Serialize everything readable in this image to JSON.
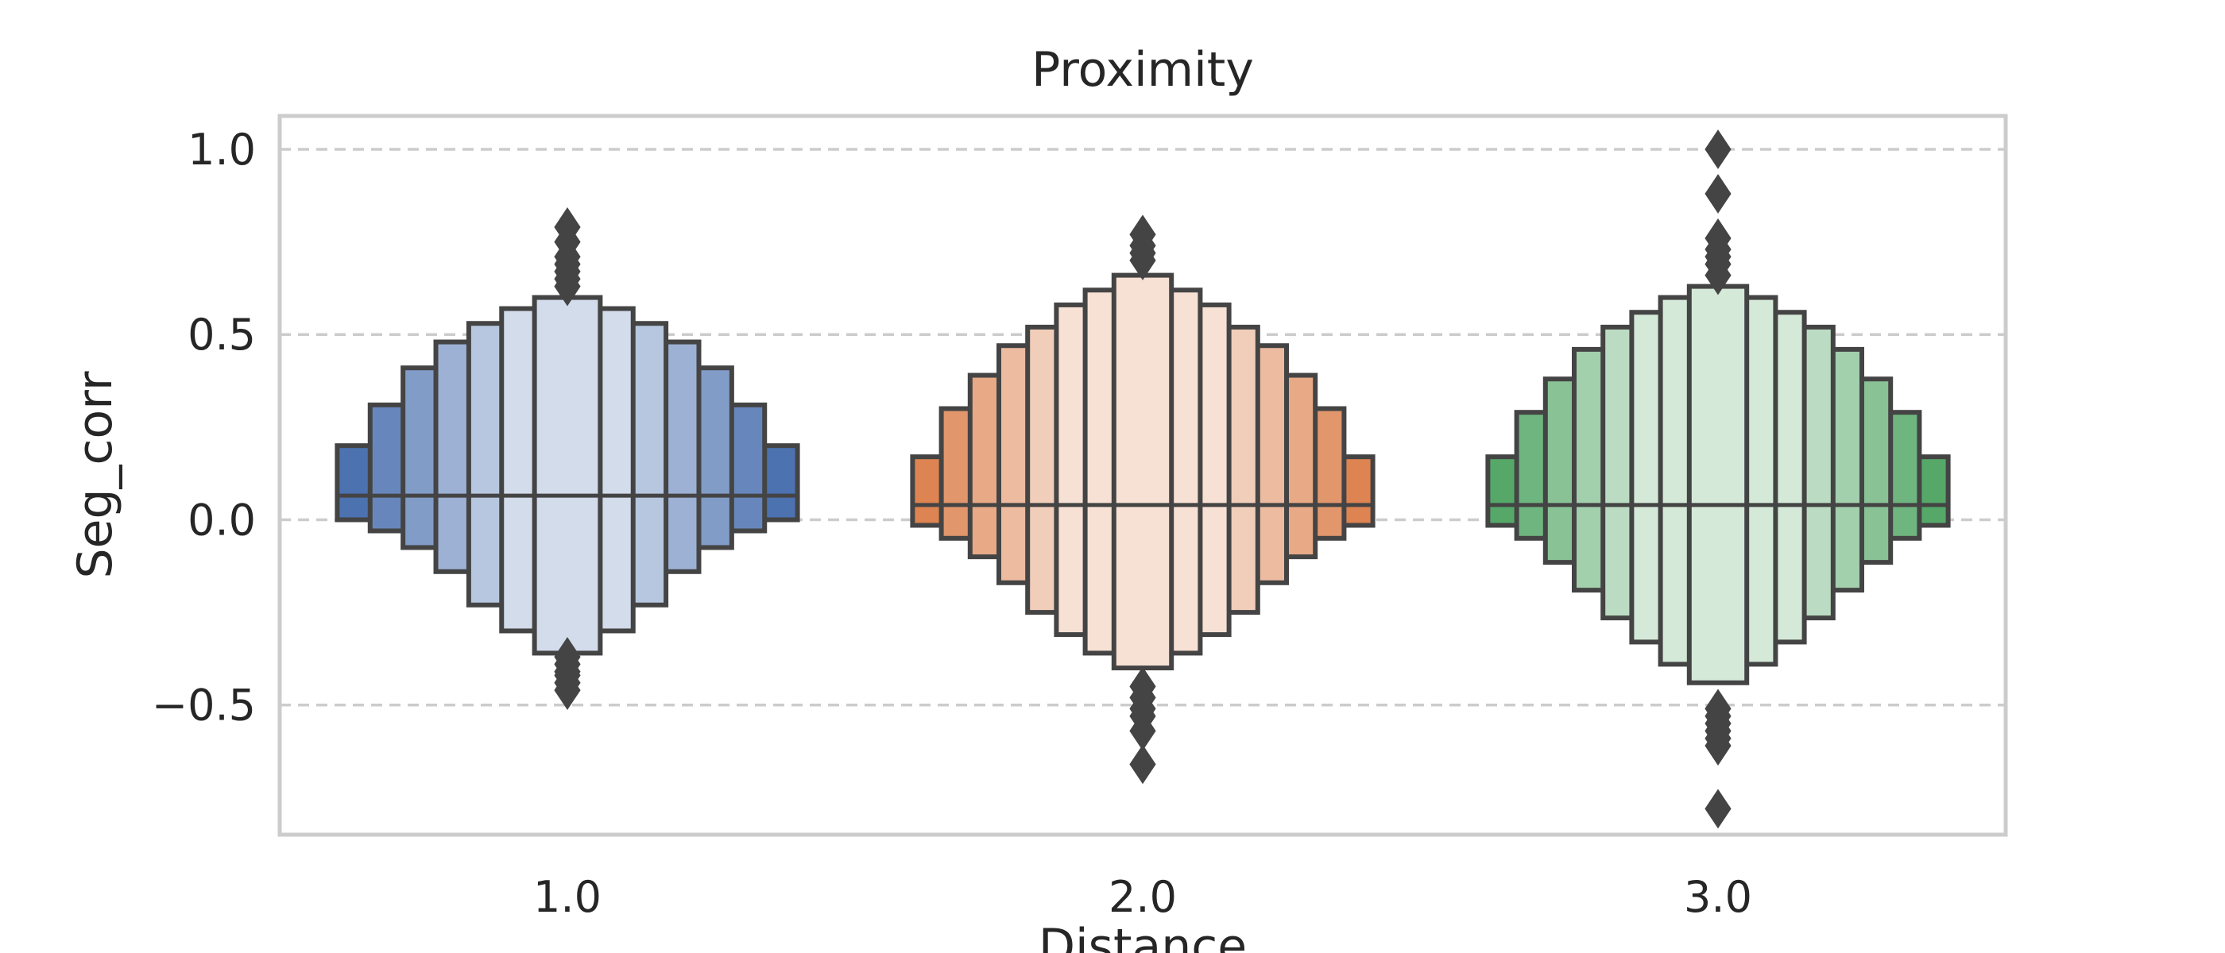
{
  "chart_data": {
    "type": "boxen",
    "title": "Proximity",
    "xlabel": "Distance",
    "ylabel": "Seg_corr",
    "categories": [
      "1.0",
      "2.0",
      "3.0"
    ],
    "ylim": [
      -0.85,
      1.09
    ],
    "yticks": [
      1.0,
      0.5,
      0.0,
      -0.5
    ],
    "ytick_labels": [
      "1.0",
      "0.5",
      "0.0",
      "−0.5"
    ],
    "grid": "y",
    "colors": [
      "#4c72b0",
      "#dd8452",
      "#55a868"
    ],
    "edge_color": "#444444",
    "series": [
      {
        "median": 0.065,
        "levels": [
          {
            "low": 0.0,
            "high": 0.2
          },
          {
            "low": -0.03,
            "high": 0.31
          },
          {
            "low": -0.075,
            "high": 0.41
          },
          {
            "low": -0.14,
            "high": 0.48
          },
          {
            "low": -0.23,
            "high": 0.53
          },
          {
            "low": -0.3,
            "high": 0.57
          },
          {
            "low": -0.36,
            "high": 0.6
          }
        ],
        "outliers": [
          0.79,
          0.75,
          0.71,
          0.69,
          0.67,
          0.65,
          0.63,
          -0.37,
          -0.39,
          -0.41,
          -0.42,
          -0.44,
          -0.46
        ]
      },
      {
        "median": 0.04,
        "levels": [
          {
            "low": -0.015,
            "high": 0.17
          },
          {
            "low": -0.05,
            "high": 0.3
          },
          {
            "low": -0.1,
            "high": 0.39
          },
          {
            "low": -0.17,
            "high": 0.47
          },
          {
            "low": -0.25,
            "high": 0.52
          },
          {
            "low": -0.31,
            "high": 0.58
          },
          {
            "low": -0.36,
            "high": 0.62
          },
          {
            "low": -0.4,
            "high": 0.66
          }
        ],
        "outliers": [
          0.77,
          0.74,
          0.72,
          0.7,
          -0.45,
          -0.48,
          -0.51,
          -0.53,
          -0.57,
          -0.66
        ]
      },
      {
        "median": 0.04,
        "levels": [
          {
            "low": -0.015,
            "high": 0.17
          },
          {
            "low": -0.05,
            "high": 0.29
          },
          {
            "low": -0.115,
            "high": 0.38
          },
          {
            "low": -0.19,
            "high": 0.46
          },
          {
            "low": -0.265,
            "high": 0.52
          },
          {
            "low": -0.33,
            "high": 0.56
          },
          {
            "low": -0.39,
            "high": 0.6
          },
          {
            "low": -0.44,
            "high": 0.63
          }
        ],
        "outliers": [
          1.0,
          0.88,
          0.76,
          0.73,
          0.71,
          0.69,
          0.66,
          -0.51,
          -0.53,
          -0.55,
          -0.57,
          -0.59,
          -0.61,
          -0.78
        ]
      }
    ]
  }
}
